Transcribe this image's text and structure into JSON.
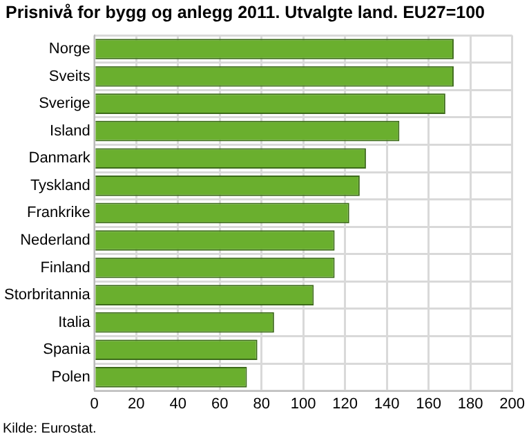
{
  "chart_data": {
    "type": "bar",
    "orientation": "horizontal",
    "title": "Prisnivå for bygg og anlegg 2011. Utvalgte land. EU27=100",
    "categories": [
      "Norge",
      "Sveits",
      "Sverige",
      "Island",
      "Danmark",
      "Tyskland",
      "Frankrike",
      "Nederland",
      "Finland",
      "Storbritannia",
      "Italia",
      "Spania",
      "Polen"
    ],
    "values": [
      172,
      172,
      168,
      146,
      130,
      127,
      122,
      115,
      115,
      105,
      86,
      78,
      73
    ],
    "color": "#6aaf2e",
    "xlim": [
      0,
      200
    ],
    "xticks": [
      0,
      20,
      40,
      60,
      80,
      100,
      120,
      140,
      160,
      180,
      200
    ],
    "grid": true,
    "annotations": [
      "Kilde: Eurostat."
    ]
  }
}
